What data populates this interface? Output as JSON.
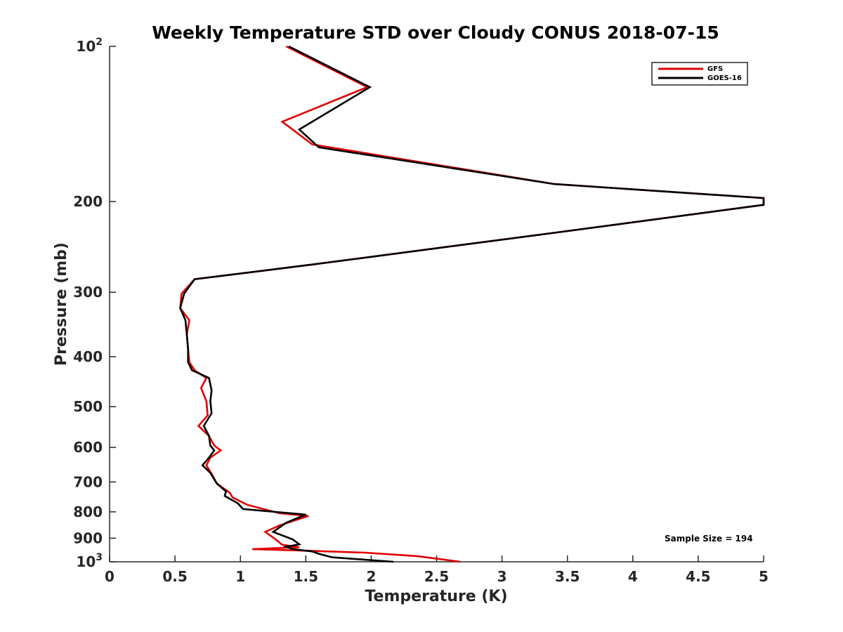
{
  "chart_data": {
    "type": "line",
    "title": "Weekly Temperature STD over Cloudy CONUS 2018-07-15",
    "xlabel": "Temperature (K)",
    "ylabel": "Pressure (mb)",
    "xlim": [
      0,
      5
    ],
    "ylim": [
      100,
      1000
    ],
    "yscale": "log",
    "y_reversed": true,
    "grid": false,
    "legend_position": "top-right",
    "x_ticks": [
      "0",
      "0.5",
      "1",
      "1.5",
      "2",
      "2.5",
      "3",
      "3.5",
      "4",
      "4.5",
      "5"
    ],
    "y_ticks": [
      {
        "value": 100,
        "base": "10",
        "exp": "2"
      },
      {
        "value": 200,
        "label": "200"
      },
      {
        "value": 300,
        "label": "300"
      },
      {
        "value": 400,
        "label": "400"
      },
      {
        "value": 500,
        "label": "500"
      },
      {
        "value": 600,
        "label": "600"
      },
      {
        "value": 700,
        "label": "700"
      },
      {
        "value": 800,
        "label": "800"
      },
      {
        "value": 900,
        "label": "900"
      },
      {
        "value": 1000,
        "base": "10",
        "exp": "3"
      }
    ],
    "annotation": "Sample Size = 194",
    "series": [
      {
        "name": "GFS",
        "color": "#e00000",
        "points": [
          [
            1.35,
            100
          ],
          [
            1.97,
            120
          ],
          [
            1.32,
            140
          ],
          [
            1.55,
            155
          ],
          [
            3.4,
            185
          ],
          [
            5.0,
            197
          ],
          [
            5.0,
            203
          ],
          [
            3.4,
            230
          ],
          [
            1.55,
            265
          ],
          [
            0.65,
            283
          ],
          [
            0.55,
            302
          ],
          [
            0.54,
            322
          ],
          [
            0.61,
            340
          ],
          [
            0.59,
            362
          ],
          [
            0.6,
            386
          ],
          [
            0.61,
            410
          ],
          [
            0.65,
            425
          ],
          [
            0.74,
            440
          ],
          [
            0.7,
            460
          ],
          [
            0.74,
            488
          ],
          [
            0.75,
            520
          ],
          [
            0.68,
            545
          ],
          [
            0.76,
            570
          ],
          [
            0.8,
            595
          ],
          [
            0.85,
            608
          ],
          [
            0.77,
            628
          ],
          [
            0.74,
            650
          ],
          [
            0.78,
            675
          ],
          [
            0.82,
            705
          ],
          [
            0.92,
            735
          ],
          [
            0.94,
            750
          ],
          [
            1.05,
            775
          ],
          [
            1.3,
            805
          ],
          [
            1.52,
            815
          ],
          [
            1.3,
            850
          ],
          [
            1.19,
            875
          ],
          [
            1.27,
            905
          ],
          [
            1.32,
            927
          ],
          [
            1.45,
            937
          ],
          [
            1.09,
            945
          ],
          [
            1.52,
            952
          ],
          [
            1.95,
            960
          ],
          [
            2.35,
            975
          ],
          [
            2.68,
            1000
          ]
        ]
      },
      {
        "name": "GOES-16",
        "color": "#000000",
        "points": [
          [
            1.37,
            100
          ],
          [
            1.99,
            120
          ],
          [
            1.45,
            145
          ],
          [
            1.6,
            157
          ],
          [
            3.4,
            185
          ],
          [
            5.0,
            197
          ],
          [
            5.0,
            203
          ],
          [
            3.4,
            230
          ],
          [
            1.55,
            265
          ],
          [
            0.65,
            283
          ],
          [
            0.57,
            302
          ],
          [
            0.54,
            322
          ],
          [
            0.58,
            340
          ],
          [
            0.59,
            362
          ],
          [
            0.6,
            386
          ],
          [
            0.6,
            410
          ],
          [
            0.63,
            425
          ],
          [
            0.76,
            440
          ],
          [
            0.78,
            465
          ],
          [
            0.77,
            488
          ],
          [
            0.78,
            515
          ],
          [
            0.72,
            545
          ],
          [
            0.76,
            570
          ],
          [
            0.77,
            595
          ],
          [
            0.8,
            608
          ],
          [
            0.76,
            628
          ],
          [
            0.71,
            650
          ],
          [
            0.77,
            672
          ],
          [
            0.82,
            705
          ],
          [
            0.89,
            730
          ],
          [
            0.88,
            745
          ],
          [
            0.98,
            770
          ],
          [
            1.02,
            790
          ],
          [
            1.5,
            810
          ],
          [
            1.35,
            840
          ],
          [
            1.25,
            875
          ],
          [
            1.4,
            905
          ],
          [
            1.45,
            925
          ],
          [
            1.35,
            935
          ],
          [
            1.4,
            945
          ],
          [
            1.55,
            955
          ],
          [
            1.6,
            965
          ],
          [
            1.7,
            980
          ],
          [
            2.17,
            1000
          ]
        ]
      }
    ]
  }
}
